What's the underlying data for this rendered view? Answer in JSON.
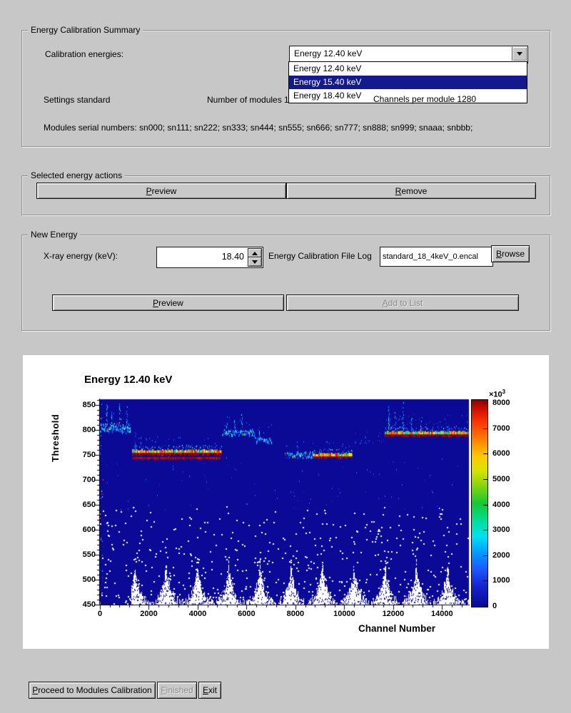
{
  "theme": {
    "window_bg": "#c7c7c7",
    "selection_bg": "#14198d",
    "selection_text": "#ffffff"
  },
  "summary": {
    "group_title": "Energy Calibration Summary",
    "calibration_energies_label": "Calibration energies:",
    "combobox_value": "Energy 12.40 keV",
    "dropdown_items": [
      "Energy 12.40 keV",
      "Energy 15.40 keV",
      "Energy 18.40 keV"
    ],
    "dropdown_selected_index": 1,
    "settings_label": "Settings standard",
    "modules_label": "Number of modules 12",
    "channels_label": "Channels per module 1280",
    "serials_label": "Modules serial numbers: sn000; sn111; sn222; sn333; sn444; sn555; sn666; sn777; sn888; sn999; snaaa; snbbb;"
  },
  "actions": {
    "group_title": "Selected energy actions",
    "preview_label": "Preview",
    "remove_label": "Remove"
  },
  "new_energy": {
    "group_title": "New Energy",
    "xray_label": "X-ray energy (keV):",
    "energy_value": "18.40",
    "file_log_label": "Energy Calibration File Log",
    "file_name_value": "standard_18_4keV_0.encal",
    "browse_label": "Browse",
    "preview_label": "Preview",
    "add_to_list_label": "Add to List"
  },
  "footer": {
    "proceed_label": "Proceed to Modules Calibration",
    "finished_label": "Finished",
    "exit_label": "Exit"
  },
  "chart_data": {
    "type": "heatmap",
    "title": "Energy 12.40 keV",
    "xlabel": "Channel Number",
    "ylabel": "Threshold",
    "xlim": [
      0,
      15100
    ],
    "ylim": [
      450,
      862
    ],
    "x_ticks": [
      0,
      2000,
      4000,
      6000,
      8000,
      10000,
      12000,
      14000
    ],
    "y_ticks": [
      450,
      500,
      550,
      600,
      650,
      700,
      750,
      800,
      850
    ],
    "colorbar": {
      "min": 0,
      "max": 8000,
      "ticks": [
        0,
        1000,
        2000,
        3000,
        4000,
        5000,
        6000,
        7000,
        8000
      ],
      "exponent_base": "×10",
      "exponent_power": "3",
      "gradient": [
        "#0a0a96 0%",
        "#1522cf 10%",
        "#1e56ff 18%",
        "#00a2ff 27%",
        "#00e0f2 34%",
        "#00dfa0 41%",
        "#16c832 50%",
        "#7fd411 58%",
        "#d8e400 66%",
        "#ffc800 73%",
        "#ff8800 80%",
        "#ff4000 88%",
        "#df1600 94%",
        "#8f0000 100%"
      ]
    },
    "colors": {
      "plot_bg": "#0a0a96"
    },
    "palettes": {
      "cool": [
        "#00e6ff",
        "#00bcff",
        "#0092ff",
        "#0062ff",
        "#2a2ae6",
        "#55eeff",
        "#00ccee",
        "#1878ff"
      ],
      "hot": [
        "#ff3c00",
        "#ff7800",
        "#ffb400",
        "#ffe600",
        "#ff2000",
        "#ffd000",
        "#e60f00"
      ],
      "warm": [
        "#3cd41c",
        "#00d89c",
        "#00c8ff",
        "#a0e000",
        "#ffe600"
      ],
      "red": [
        "#990000",
        "#b40a00",
        "#c81400",
        "#a50500",
        "#8b0000"
      ],
      "faint": [
        "#2038d8",
        "#1b2cc0",
        "#3350ff",
        "#1a1ab4",
        "#2f64ff",
        "#2255ee"
      ],
      "strip": [
        "#00c8ff",
        "#2038e0",
        "#ff5000",
        "#ffd000",
        "#151570",
        "#00e4ff",
        "#333333",
        "#0a96ff"
      ]
    },
    "band_segments": [
      {
        "ch": [
          40,
          1260
        ],
        "thr": 805,
        "style": "cool",
        "spread": 7,
        "accent": true
      },
      {
        "ch": [
          1300,
          4990
        ],
        "thr": 756,
        "style": "hot"
      },
      {
        "ch": [
          1300,
          4940
        ],
        "thr": 744,
        "style": "red"
      },
      {
        "ch": [
          4990,
          6340
        ],
        "thr": 796,
        "style": "cool",
        "spread": 5
      },
      {
        "ch": [
          6340,
          7030
        ],
        "thr": 781,
        "style": "cool",
        "spread": 4
      },
      {
        "ch": [
          7560,
          8740
        ],
        "thr": 751,
        "style": "cool",
        "spread": 5
      },
      {
        "ch": [
          8740,
          10340
        ],
        "thr": 748,
        "style": "hot"
      },
      {
        "ch": [
          10420,
          11620
        ],
        "thr": 778,
        "style": "faint"
      },
      {
        "ch": [
          11660,
          15100
        ],
        "thr": 793,
        "style": "hot"
      },
      {
        "ch": [
          11660,
          15100
        ],
        "thr": 803,
        "style": "faint"
      }
    ],
    "noise_spikes": [
      {
        "ch": 260,
        "range": [
          812,
          852
        ]
      },
      {
        "ch": 480,
        "range": [
          810,
          840
        ]
      },
      {
        "ch": 780,
        "range": [
          810,
          856
        ]
      },
      {
        "ch": 1090,
        "range": [
          808,
          848
        ]
      },
      {
        "ch": 1430,
        "range": [
          762,
          800
        ]
      },
      {
        "ch": 1660,
        "range": [
          760,
          790
        ]
      },
      {
        "ch": 5160,
        "range": [
          800,
          828
        ]
      },
      {
        "ch": 5500,
        "range": [
          799,
          822
        ]
      },
      {
        "ch": 5780,
        "range": [
          798,
          834
        ]
      },
      {
        "ch": 6520,
        "range": [
          784,
          802
        ]
      },
      {
        "ch": 8060,
        "range": [
          754,
          772
        ]
      },
      {
        "ch": 11800,
        "range": [
          796,
          852
        ]
      },
      {
        "ch": 12060,
        "range": [
          796,
          840
        ]
      },
      {
        "ch": 12380,
        "range": [
          795,
          856
        ]
      },
      {
        "ch": 12720,
        "range": [
          794,
          830
        ]
      },
      {
        "ch": 13120,
        "range": [
          794,
          820
        ]
      },
      {
        "ch": 14240,
        "range": [
          793,
          812
        ]
      }
    ]
  }
}
